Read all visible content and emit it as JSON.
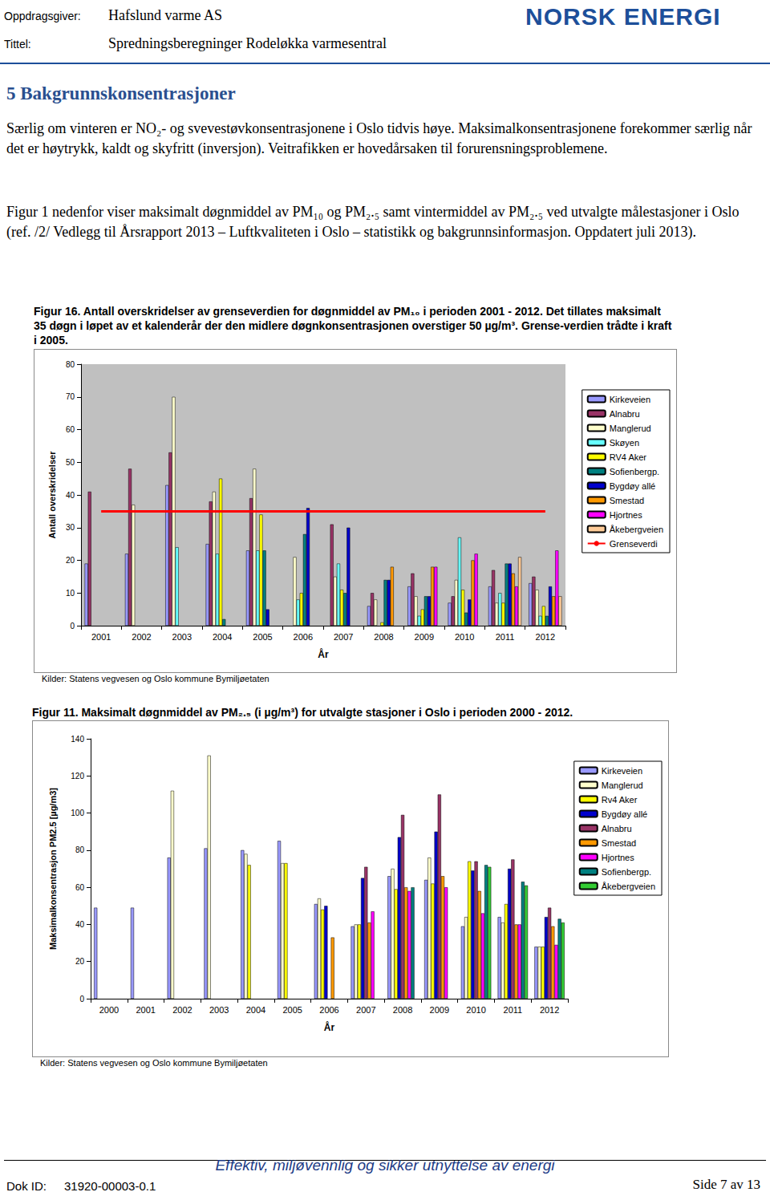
{
  "header": {
    "client_label": "Oppdragsgiver:",
    "client": "Hafslund varme AS",
    "title_label": "Tittel:",
    "title": "Spredningsberegninger Rodeløkka varmesentral",
    "logo": "NORSK ENERGI"
  },
  "section": {
    "heading": "5 Bakgrunnskonsentrasjoner",
    "paragraphs": [
      "Særlig om vinteren er NO₂- og svevestøvkonsentrasjonene i Oslo tidvis høye. Maksimalkonsentrasjonene forekommer særlig når det er høytrykk, kaldt og skyfritt (inversjon). Veitrafikken er hovedårsaken til forurensningsproblemene.",
      "Figur 1 nedenfor viser maksimalt døgnmiddel av PM₁₀ og PM₂.₅ samt vintermiddel av PM₂.₅ ved utvalgte målestasjoner i Oslo (ref. /2/ Vedlegg til Årsrapport 2013 – Luftkvaliteten i Oslo – statistikk og bakgrunnsinformasjon. Oppdatert juli 2013)."
    ]
  },
  "chart_data": [
    {
      "type": "bar",
      "title": "Figur 16. Antall overskridelser av grenseverdien for døgnmiddel av PM₁₀ i perioden 2001 - 2012. Det tillates maksimalt 35 døgn i løpet av et kalenderår der den midlere døgnkonsentrasjonen overstiger 50 µg/m³. Grense-verdien trådte i kraft i 2005.",
      "source": "Kilder: Statens vegvesen og Oslo kommune Bymiljøetaten",
      "x_label": "År",
      "y_label": "Antall overskridelser",
      "categories": [
        "2001",
        "2002",
        "2003",
        "2004",
        "2005",
        "2006",
        "2007",
        "2008",
        "2009",
        "2010",
        "2011",
        "2012"
      ],
      "ylim": [
        0,
        80
      ],
      "yticks": [
        0,
        10,
        20,
        30,
        40,
        50,
        60,
        70,
        80
      ],
      "grid": false,
      "legend": "right",
      "series": [
        {
          "name": "Kirkeveien",
          "color": "#9999ff",
          "values": [
            19,
            22,
            43,
            25,
            23,
            null,
            null,
            6,
            12,
            7,
            12,
            13
          ]
        },
        {
          "name": "Alnabru",
          "color": "#993366",
          "values": [
            41,
            48,
            53,
            38,
            39,
            null,
            31,
            10,
            16,
            9,
            17,
            15
          ]
        },
        {
          "name": "Manglerud",
          "color": "#ffffcc",
          "values": [
            null,
            37,
            70,
            41,
            48,
            21,
            15,
            8,
            9,
            14,
            7,
            11
          ]
        },
        {
          "name": "Skøyen",
          "color": "#66ffff",
          "values": [
            null,
            null,
            24,
            22,
            23,
            8,
            19,
            null,
            3,
            27,
            10,
            3
          ]
        },
        {
          "name": "RV4 Aker",
          "color": "#ffff00",
          "values": [
            null,
            null,
            null,
            45,
            34,
            10,
            11,
            1,
            5,
            11,
            7,
            6
          ]
        },
        {
          "name": "Sofienbergp.",
          "color": "#008080",
          "values": [
            null,
            null,
            null,
            2,
            23,
            28,
            10,
            14,
            9,
            4,
            19,
            3
          ]
        },
        {
          "name": "Bygdøy allé",
          "color": "#0000cc",
          "values": [
            null,
            null,
            null,
            null,
            5,
            36,
            30,
            14,
            9,
            8,
            19,
            12
          ]
        },
        {
          "name": "Smestad",
          "color": "#ff9900",
          "values": [
            null,
            null,
            null,
            null,
            null,
            null,
            null,
            18,
            18,
            20,
            16,
            9
          ]
        },
        {
          "name": "Hjortnes",
          "color": "#ff00ff",
          "values": [
            null,
            null,
            null,
            null,
            null,
            null,
            null,
            null,
            18,
            22,
            12,
            23
          ]
        },
        {
          "name": "Åkebergveien",
          "color": "#ffcc99",
          "values": [
            null,
            null,
            null,
            null,
            null,
            null,
            null,
            null,
            null,
            null,
            21,
            9
          ]
        },
        {
          "name": "Grenseverdi",
          "color": "#ff0000",
          "type": "line",
          "line_style": "solid",
          "values": [
            35,
            35,
            35,
            35,
            35,
            35,
            35,
            35,
            35,
            35,
            35,
            35
          ]
        }
      ]
    },
    {
      "type": "bar",
      "title": "Figur 11. Maksimalt døgnmiddel av PM₂.₅ (i µg/m³) for utvalgte stasjoner i Oslo i perioden 2000 - 2012.",
      "source": "Kilder: Statens vegvesen og Oslo kommune Bymiljøetaten",
      "x_label": "År",
      "y_label": "Maksimalkonsentrasjon PM2.5 [µg/m3]",
      "categories": [
        "2000",
        "2001",
        "2002",
        "2003",
        "2004",
        "2005",
        "2006",
        "2007",
        "2008",
        "2009",
        "2010",
        "2011",
        "2012"
      ],
      "ylim": [
        0,
        140
      ],
      "yticks": [
        0,
        20,
        40,
        60,
        80,
        100,
        120,
        140
      ],
      "grid": false,
      "legend": "right",
      "series": [
        {
          "name": "Kirkeveien",
          "color": "#9999ff",
          "values": [
            49,
            49,
            76,
            81,
            80,
            85,
            51,
            39,
            66,
            64,
            39,
            44,
            28
          ]
        },
        {
          "name": "Manglerud",
          "color": "#ffffcc",
          "values": [
            null,
            null,
            112,
            131,
            78,
            73,
            54,
            40,
            70,
            76,
            44,
            41,
            28
          ]
        },
        {
          "name": "Rv4 Aker",
          "color": "#ffff00",
          "values": [
            null,
            null,
            null,
            null,
            72,
            73,
            48,
            40,
            59,
            62,
            74,
            51,
            28
          ]
        },
        {
          "name": "Bygdøy allé",
          "color": "#0000cc",
          "values": [
            null,
            null,
            null,
            null,
            null,
            null,
            50,
            65,
            87,
            90,
            69,
            70,
            44
          ]
        },
        {
          "name": "Alnabru",
          "color": "#993366",
          "values": [
            null,
            null,
            null,
            null,
            null,
            null,
            null,
            71,
            99,
            110,
            74,
            75,
            49
          ]
        },
        {
          "name": "Smestad",
          "color": "#ff9900",
          "values": [
            null,
            null,
            null,
            null,
            null,
            null,
            33,
            41,
            60,
            66,
            58,
            40,
            39
          ]
        },
        {
          "name": "Hjortnes",
          "color": "#ff00ff",
          "values": [
            null,
            null,
            null,
            null,
            null,
            null,
            null,
            47,
            58,
            60,
            46,
            40,
            29
          ]
        },
        {
          "name": "Sofienbergp.",
          "color": "#008080",
          "values": [
            null,
            null,
            null,
            null,
            null,
            null,
            null,
            null,
            60,
            null,
            72,
            63,
            43
          ]
        },
        {
          "name": "Åkebergveien",
          "color": "#33cc33",
          "values": [
            null,
            null,
            null,
            null,
            null,
            null,
            null,
            null,
            null,
            null,
            71,
            61,
            41
          ]
        }
      ]
    }
  ],
  "footer": {
    "slogan": "Effektiv, miljøvennlig og sikker utnyttelse av energi",
    "doc_label": "Dok ID:",
    "doc_id": "31920-00003-0.1",
    "page": "Side 7 av 13"
  }
}
